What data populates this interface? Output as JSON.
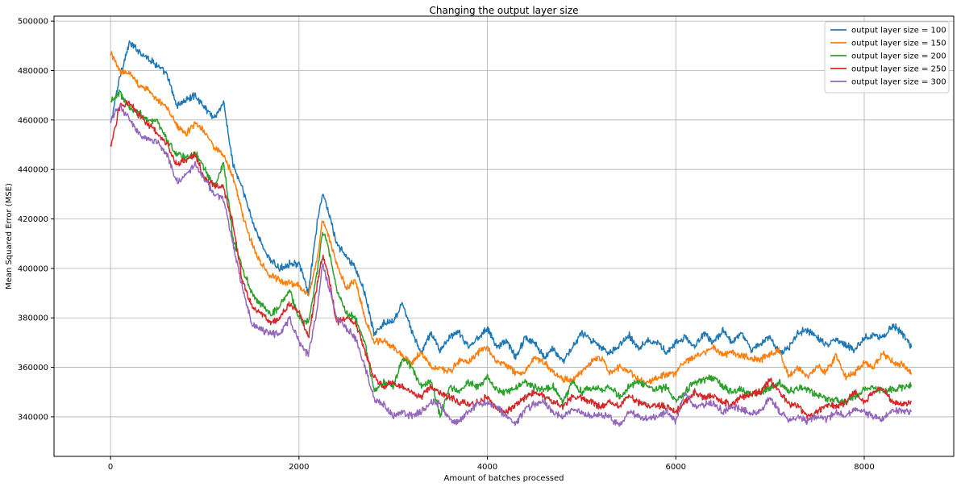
{
  "chart_data": {
    "type": "line",
    "title": "Changing the output layer size",
    "xlabel": "Amount of batches processed",
    "ylabel": "Mean Squared Error (MSE)",
    "xlim": [
      -600,
      8950
    ],
    "ylim": [
      324000,
      502000
    ],
    "xticks": [
      0,
      2000,
      4000,
      6000,
      8000
    ],
    "xtick_labels": [
      "0",
      "2000",
      "4000",
      "6000",
      "8000"
    ],
    "yticks": [
      340000,
      360000,
      380000,
      400000,
      420000,
      440000,
      460000,
      480000,
      500000
    ],
    "ytick_labels": [
      "340000",
      "360000",
      "380000",
      "400000",
      "420000",
      "440000",
      "460000",
      "480000",
      "500000"
    ],
    "grid": true,
    "legend_position": "upper right",
    "series": [
      {
        "name": "output layer size = 100",
        "color": "#1f77b4",
        "x": [
          0,
          100,
          200,
          300,
          400,
          500,
          600,
          700,
          800,
          900,
          1000,
          1100,
          1200,
          1300,
          1400,
          1500,
          1600,
          1700,
          1800,
          1900,
          2000,
          2100,
          2200,
          2250,
          2300,
          2400,
          2500,
          2600,
          2700,
          2800,
          2900,
          3000,
          3100,
          3200,
          3300,
          3400,
          3500,
          3600,
          3700,
          3800,
          3900,
          4000,
          4100,
          4200,
          4300,
          4400,
          4500,
          4600,
          4700,
          4800,
          4900,
          5000,
          5100,
          5200,
          5300,
          5400,
          5500,
          5600,
          5700,
          5800,
          5900,
          6000,
          6100,
          6200,
          6300,
          6400,
          6500,
          6600,
          6700,
          6800,
          6900,
          7000,
          7100,
          7200,
          7300,
          7400,
          7500,
          7600,
          7700,
          7800,
          7900,
          8000,
          8100,
          8200,
          8300,
          8400,
          8500
        ],
        "y": [
          458000,
          478000,
          491000,
          488000,
          485000,
          482000,
          478000,
          466000,
          468000,
          470000,
          465000,
          461000,
          467000,
          442000,
          432000,
          420000,
          410000,
          403000,
          400000,
          402000,
          402000,
          390000,
          420000,
          430000,
          425000,
          410000,
          405000,
          400000,
          390000,
          373000,
          378000,
          378000,
          386000,
          374000,
          366000,
          374000,
          367000,
          372000,
          374000,
          368000,
          372000,
          376000,
          368000,
          371000,
          364000,
          372000,
          370000,
          364000,
          368000,
          362000,
          368000,
          374000,
          371000,
          368000,
          366000,
          369000,
          373000,
          368000,
          371000,
          370000,
          366000,
          370000,
          372000,
          368000,
          374000,
          370000,
          375000,
          370000,
          374000,
          367000,
          370000,
          372000,
          366000,
          368000,
          374000,
          375000,
          372000,
          369000,
          371000,
          369000,
          367000,
          372000,
          373000,
          372000,
          377000,
          374000,
          368000
        ]
      },
      {
        "name": "output layer size = 150",
        "color": "#ff7f0e",
        "x": [
          0,
          100,
          200,
          300,
          400,
          500,
          600,
          700,
          800,
          900,
          1000,
          1100,
          1200,
          1300,
          1400,
          1500,
          1600,
          1700,
          1800,
          1900,
          2000,
          2100,
          2200,
          2250,
          2300,
          2400,
          2500,
          2600,
          2700,
          2800,
          2900,
          3000,
          3100,
          3200,
          3300,
          3400,
          3500,
          3600,
          3700,
          3800,
          3900,
          4000,
          4100,
          4200,
          4300,
          4400,
          4500,
          4600,
          4700,
          4800,
          4900,
          5000,
          5100,
          5200,
          5300,
          5400,
          5500,
          5600,
          5700,
          5800,
          5900,
          6000,
          6100,
          6200,
          6300,
          6400,
          6500,
          6600,
          6700,
          6800,
          6900,
          7000,
          7100,
          7200,
          7300,
          7400,
          7500,
          7600,
          7700,
          7800,
          7900,
          8000,
          8100,
          8200,
          8300,
          8400,
          8500
        ],
        "y": [
          487000,
          480000,
          479000,
          474000,
          472000,
          468000,
          465000,
          458000,
          454000,
          459000,
          455000,
          449000,
          446000,
          437000,
          422000,
          410000,
          402000,
          397000,
          395000,
          394000,
          393000,
          389000,
          405000,
          420000,
          415000,
          402000,
          392000,
          395000,
          380000,
          370000,
          371000,
          368000,
          364000,
          362000,
          366000,
          360000,
          360000,
          358000,
          363000,
          362000,
          366000,
          368000,
          362000,
          361000,
          358000,
          358000,
          364000,
          362000,
          358000,
          355000,
          355000,
          358000,
          362000,
          364000,
          358000,
          360000,
          358000,
          355000,
          354000,
          356000,
          357000,
          358000,
          362000,
          364000,
          366000,
          368000,
          365000,
          366000,
          365000,
          364000,
          363000,
          365000,
          367000,
          356000,
          360000,
          356000,
          360000,
          358000,
          365000,
          356000,
          358000,
          362000,
          360000,
          366000,
          362000,
          361000,
          358000
        ]
      },
      {
        "name": "output layer size = 200",
        "color": "#2ca02c",
        "x": [
          0,
          100,
          200,
          300,
          400,
          500,
          600,
          700,
          800,
          900,
          1000,
          1100,
          1200,
          1300,
          1400,
          1500,
          1600,
          1700,
          1800,
          1900,
          2000,
          2100,
          2200,
          2250,
          2300,
          2400,
          2500,
          2600,
          2700,
          2800,
          2900,
          3000,
          3100,
          3200,
          3300,
          3400,
          3500,
          3600,
          3700,
          3800,
          3900,
          4000,
          4100,
          4200,
          4300,
          4400,
          4500,
          4600,
          4700,
          4800,
          4900,
          5000,
          5100,
          5200,
          5300,
          5400,
          5500,
          5600,
          5700,
          5800,
          5900,
          6000,
          6100,
          6200,
          6300,
          6400,
          6500,
          6600,
          6700,
          6800,
          6900,
          7000,
          7100,
          7200,
          7300,
          7400,
          7500,
          7600,
          7700,
          7800,
          7900,
          8000,
          8100,
          8200,
          8300,
          8400,
          8500
        ],
        "y": [
          468000,
          471000,
          465000,
          463000,
          460000,
          459000,
          452000,
          446000,
          445000,
          447000,
          440000,
          433000,
          443000,
          412000,
          400000,
          390000,
          385000,
          381000,
          385000,
          391000,
          380000,
          378000,
          400000,
          415000,
          410000,
          392000,
          382000,
          380000,
          370000,
          350000,
          354000,
          352000,
          364000,
          360000,
          352000,
          355000,
          340000,
          352000,
          350000,
          354000,
          352000,
          356000,
          351000,
          350000,
          352000,
          354000,
          352000,
          351000,
          352000,
          346000,
          354000,
          350000,
          352000,
          351000,
          352000,
          348000,
          352000,
          354000,
          352000,
          351000,
          352000,
          346000,
          350000,
          354000,
          355000,
          356000,
          352000,
          350000,
          351000,
          349000,
          350000,
          352000,
          354000,
          350000,
          352000,
          351000,
          349000,
          347000,
          347000,
          346000,
          348000,
          351000,
          352000,
          350000,
          351000,
          352000,
          353000
        ]
      },
      {
        "name": "output layer size = 250",
        "color": "#d62728",
        "x": [
          0,
          100,
          200,
          300,
          400,
          500,
          600,
          700,
          800,
          900,
          1000,
          1100,
          1200,
          1300,
          1400,
          1500,
          1600,
          1700,
          1800,
          1900,
          2000,
          2100,
          2200,
          2250,
          2300,
          2400,
          2500,
          2600,
          2700,
          2800,
          2900,
          3000,
          3100,
          3200,
          3300,
          3400,
          3500,
          3600,
          3700,
          3800,
          3900,
          4000,
          4100,
          4200,
          4300,
          4400,
          4500,
          4600,
          4700,
          4800,
          4900,
          5000,
          5100,
          5200,
          5300,
          5400,
          5500,
          5600,
          5700,
          5800,
          5900,
          6000,
          6100,
          6200,
          6300,
          6400,
          6500,
          6600,
          6700,
          6800,
          6900,
          7000,
          7100,
          7200,
          7300,
          7400,
          7500,
          7600,
          7700,
          7800,
          7900,
          8000,
          8100,
          8200,
          8300,
          8400,
          8500
        ],
        "y": [
          449000,
          466000,
          467000,
          462000,
          458000,
          455000,
          450000,
          442000,
          444000,
          446000,
          436000,
          434000,
          432000,
          418000,
          395000,
          385000,
          382000,
          378000,
          380000,
          386000,
          382000,
          372000,
          395000,
          405000,
          400000,
          378000,
          380000,
          378000,
          366000,
          356000,
          352000,
          354000,
          352000,
          350000,
          348000,
          352000,
          350000,
          348000,
          346000,
          345000,
          346000,
          348000,
          343000,
          342000,
          345000,
          348000,
          350000,
          348000,
          346000,
          344000,
          348000,
          348000,
          346000,
          344000,
          346000,
          344000,
          348000,
          346000,
          344000,
          345000,
          344000,
          342000,
          346000,
          350000,
          348000,
          348000,
          346000,
          345000,
          348000,
          349000,
          350000,
          355000,
          350000,
          345000,
          344000,
          340000,
          342000,
          345000,
          344000,
          346000,
          350000,
          346000,
          350000,
          352000,
          346000,
          345000,
          346000
        ]
      },
      {
        "name": "output layer size = 300",
        "color": "#9467bd",
        "x": [
          0,
          100,
          200,
          300,
          400,
          500,
          600,
          700,
          800,
          900,
          1000,
          1100,
          1200,
          1300,
          1400,
          1500,
          1600,
          1700,
          1800,
          1900,
          2000,
          2100,
          2200,
          2250,
          2300,
          2400,
          2500,
          2600,
          2700,
          2800,
          2900,
          3000,
          3100,
          3200,
          3300,
          3400,
          3500,
          3600,
          3700,
          3800,
          3900,
          4000,
          4100,
          4200,
          4300,
          4400,
          4500,
          4600,
          4700,
          4800,
          4900,
          5000,
          5100,
          5200,
          5300,
          5400,
          5500,
          5600,
          5700,
          5800,
          5900,
          6000,
          6100,
          6200,
          6300,
          6400,
          6500,
          6600,
          6700,
          6800,
          6900,
          7000,
          7100,
          7200,
          7300,
          7400,
          7500,
          7600,
          7700,
          7800,
          7900,
          8000,
          8100,
          8200,
          8300,
          8400,
          8500
        ],
        "y": [
          460000,
          466000,
          460000,
          455000,
          452000,
          451000,
          446000,
          435000,
          438000,
          442000,
          436000,
          430000,
          428000,
          410000,
          392000,
          378000,
          375000,
          374000,
          373000,
          380000,
          370000,
          365000,
          385000,
          402000,
          395000,
          380000,
          376000,
          372000,
          360000,
          347000,
          345000,
          340000,
          342000,
          340000,
          342000,
          346000,
          345000,
          339000,
          338000,
          342000,
          345000,
          346000,
          344000,
          340000,
          337000,
          343000,
          345000,
          346000,
          342000,
          340000,
          343000,
          342000,
          340000,
          341000,
          340000,
          336000,
          342000,
          340000,
          339000,
          340000,
          342000,
          338000,
          350000,
          344000,
          345000,
          346000,
          342000,
          344000,
          343000,
          341000,
          342000,
          348000,
          342000,
          339000,
          340000,
          338000,
          340000,
          339000,
          342000,
          340000,
          343000,
          342000,
          340000,
          339000,
          343000,
          342000,
          342000
        ]
      }
    ]
  }
}
